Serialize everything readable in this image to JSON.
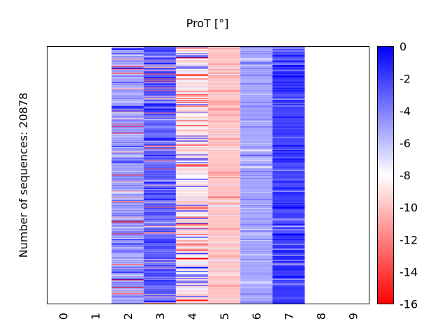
{
  "chart_data": {
    "type": "heatmap",
    "title": "ProT [°]",
    "ylabel": "Number of sequences: 20878",
    "xlabel": "",
    "x_categories": [
      "0",
      "1",
      "2",
      "3",
      "4",
      "5",
      "6",
      "7",
      "8",
      "9"
    ],
    "n_rows": 20878,
    "colorbar": {
      "range": [
        -16,
        0
      ],
      "ticks": [
        "0",
        "-2",
        "-4",
        "-6",
        "-8",
        "-10",
        "-12",
        "-14",
        "-16"
      ],
      "tick_values": [
        0,
        -2,
        -4,
        -6,
        -8,
        -10,
        -12,
        -14,
        -16
      ],
      "colormap": "bwr",
      "low_color": "#ff0000",
      "mid_color": "#ffffff",
      "high_color": "#0000ff",
      "mid_value": -8
    },
    "columns": [
      {
        "category": "0",
        "has_data": false
      },
      {
        "category": "1",
        "has_data": false
      },
      {
        "category": "2",
        "has_data": true,
        "typical_value": -5.0,
        "spread": 3.2,
        "seed": 11
      },
      {
        "category": "3",
        "has_data": true,
        "typical_value": -3.0,
        "spread": 2.6,
        "seed": 23
      },
      {
        "category": "4",
        "has_data": true,
        "typical_value": -8.6,
        "spread": 2.8,
        "seed": 37
      },
      {
        "category": "5",
        "has_data": true,
        "typical_value": -9.8,
        "spread": 0.8,
        "seed": 41
      },
      {
        "category": "6",
        "has_data": true,
        "typical_value": -5.2,
        "spread": 0.7,
        "seed": 53
      },
      {
        "category": "7",
        "has_data": true,
        "typical_value": -2.0,
        "spread": 1.3,
        "seed": 67
      },
      {
        "category": "8",
        "has_data": false
      },
      {
        "category": "9",
        "has_data": false
      }
    ]
  }
}
